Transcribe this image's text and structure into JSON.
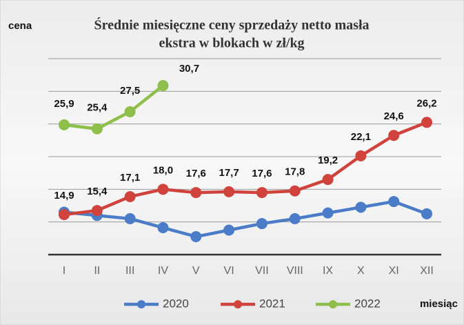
{
  "chart_data": {
    "type": "line",
    "title_lines": [
      "Średnie miesięczne ceny sprzedaży  netto masła",
      "ekstra w blokach w zł/kg"
    ],
    "y_label": "cena",
    "x_label": "miesiąc",
    "categories": [
      "I",
      "II",
      "III",
      "IV",
      "V",
      "VI",
      "VII",
      "VIII",
      "IX",
      "X",
      "XI",
      "XII"
    ],
    "series": [
      {
        "name": "2020",
        "color": "#4a7cc7",
        "values": [
          15.2,
          14.8,
          14.4,
          13.3,
          12.2,
          13.0,
          13.8,
          14.4,
          15.1,
          15.8,
          16.5,
          15.0
        ]
      },
      {
        "name": "2021",
        "color": "#d0433d",
        "values": [
          14.9,
          15.4,
          17.1,
          18.0,
          17.6,
          17.7,
          17.6,
          17.8,
          19.2,
          22.1,
          24.6,
          26.2
        ],
        "value_labels": [
          "14,9",
          "15,4",
          "17,1",
          "18,0",
          "17,6",
          "17,7",
          "17,6",
          "17,8",
          "19,2",
          "22,1",
          "24,6",
          "26,2"
        ]
      },
      {
        "name": "2022",
        "color": "#8dbf4a",
        "values": [
          25.9,
          25.4,
          27.5,
          30.7,
          null,
          null,
          null,
          null,
          null,
          null,
          null,
          null
        ],
        "value_labels": [
          "25,9",
          "25,4",
          "27,5",
          "30,7",
          null,
          null,
          null,
          null,
          null,
          null,
          null,
          null
        ]
      }
    ],
    "ylim": [
      10,
      36
    ],
    "yticks": [
      10,
      14,
      18,
      22,
      26,
      30,
      34
    ],
    "grid": true,
    "legend": "bottom"
  }
}
